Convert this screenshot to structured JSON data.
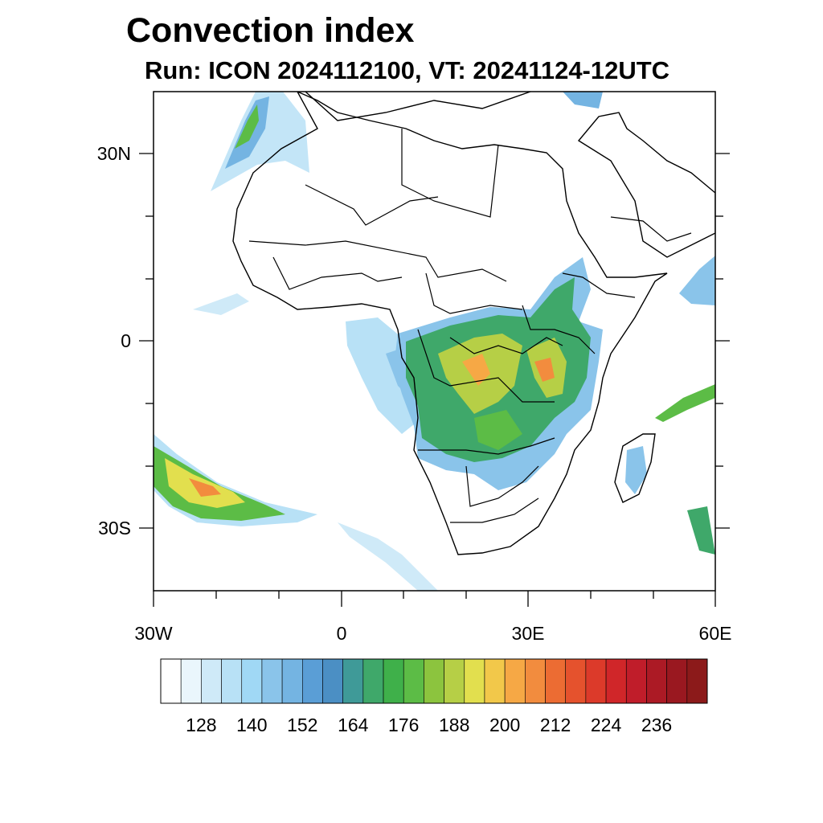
{
  "title": "Convection index",
  "subtitle": "Run: ICON 2024112100,  VT: 20241124-12UTC",
  "map": {
    "lon_range": [
      -30,
      60
    ],
    "lat_range": [
      -40,
      40
    ],
    "lat_ticks": [
      "30N",
      "0",
      "30S"
    ],
    "lon_ticks": [
      "30W",
      "0",
      "30E",
      "60E"
    ]
  },
  "colorbar": {
    "labels": [
      "128",
      "140",
      "152",
      "164",
      "176",
      "188",
      "200",
      "212",
      "224",
      "236"
    ],
    "colors": [
      "#ffffff",
      "#eaf6fc",
      "#cfeaf8",
      "#b8e1f6",
      "#a0d8f5",
      "#8ac4ea",
      "#74b4e2",
      "#5a9ed6",
      "#4b8fc4",
      "#3f9a98",
      "#3fa86a",
      "#3fb04a",
      "#5cbc46",
      "#8cc43e",
      "#b6cf46",
      "#e2df4e",
      "#f2c84a",
      "#f6a845",
      "#f28c3e",
      "#ec6c33",
      "#e5522d",
      "#dc3a2a",
      "#d02629",
      "#c01d2a",
      "#ac1a25",
      "#9a1820",
      "#8c1a1a"
    ]
  }
}
